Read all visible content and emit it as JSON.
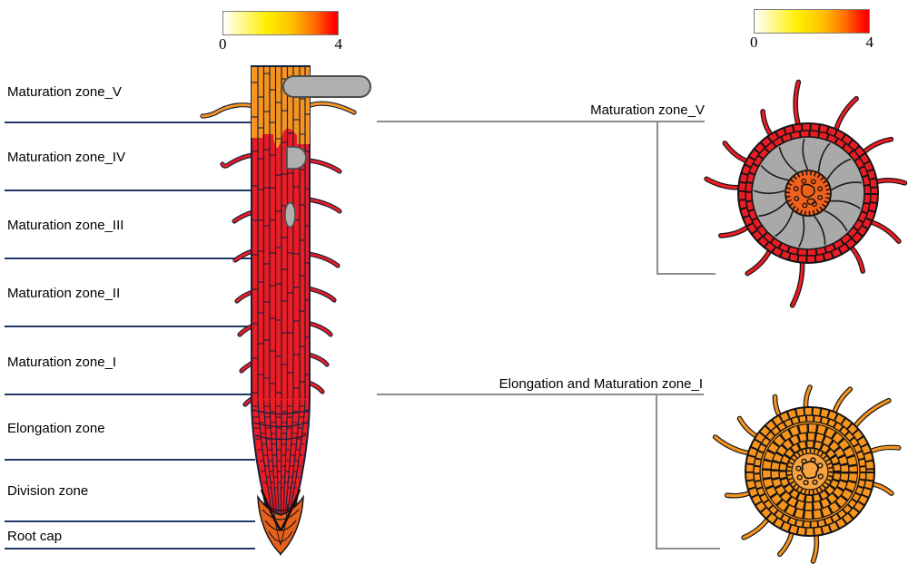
{
  "colorbar_left": {
    "min_label": "0",
    "max_label": "4"
  },
  "colorbar_right": {
    "min_label": "0",
    "max_label": "4"
  },
  "zones": [
    {
      "label": "Maturation zone_V"
    },
    {
      "label": "Maturation zone_IV"
    },
    {
      "label": "Maturation zone_III"
    },
    {
      "label": "Maturation zone_II"
    },
    {
      "label": "Maturation zone_I"
    },
    {
      "label": "Elongation zone"
    },
    {
      "label": "Division zone"
    },
    {
      "label": "Root cap"
    }
  ],
  "cross_sections": [
    {
      "label": "Maturation zone_V"
    },
    {
      "label": "Elongation and Maturation zone_I"
    }
  ],
  "colors": {
    "zone_line": "#1f3864",
    "bracket_line": "#8c8c8c",
    "root_red": "#ec1c24",
    "root_orange": "#f7941d",
    "root_cap_orange": "#e8611c",
    "cell_outline": "#14213d",
    "gray_primordium": "#b0b0b0",
    "gray_outline": "#4d4d4d",
    "stele_orange": "#f2611c",
    "stele_light_orange": "#f9a240",
    "cortex_gray": "#a9a9a9",
    "gradient_low": "#ffffff",
    "gradient_mid": "#ffee00",
    "gradient_high": "#ff0000"
  }
}
